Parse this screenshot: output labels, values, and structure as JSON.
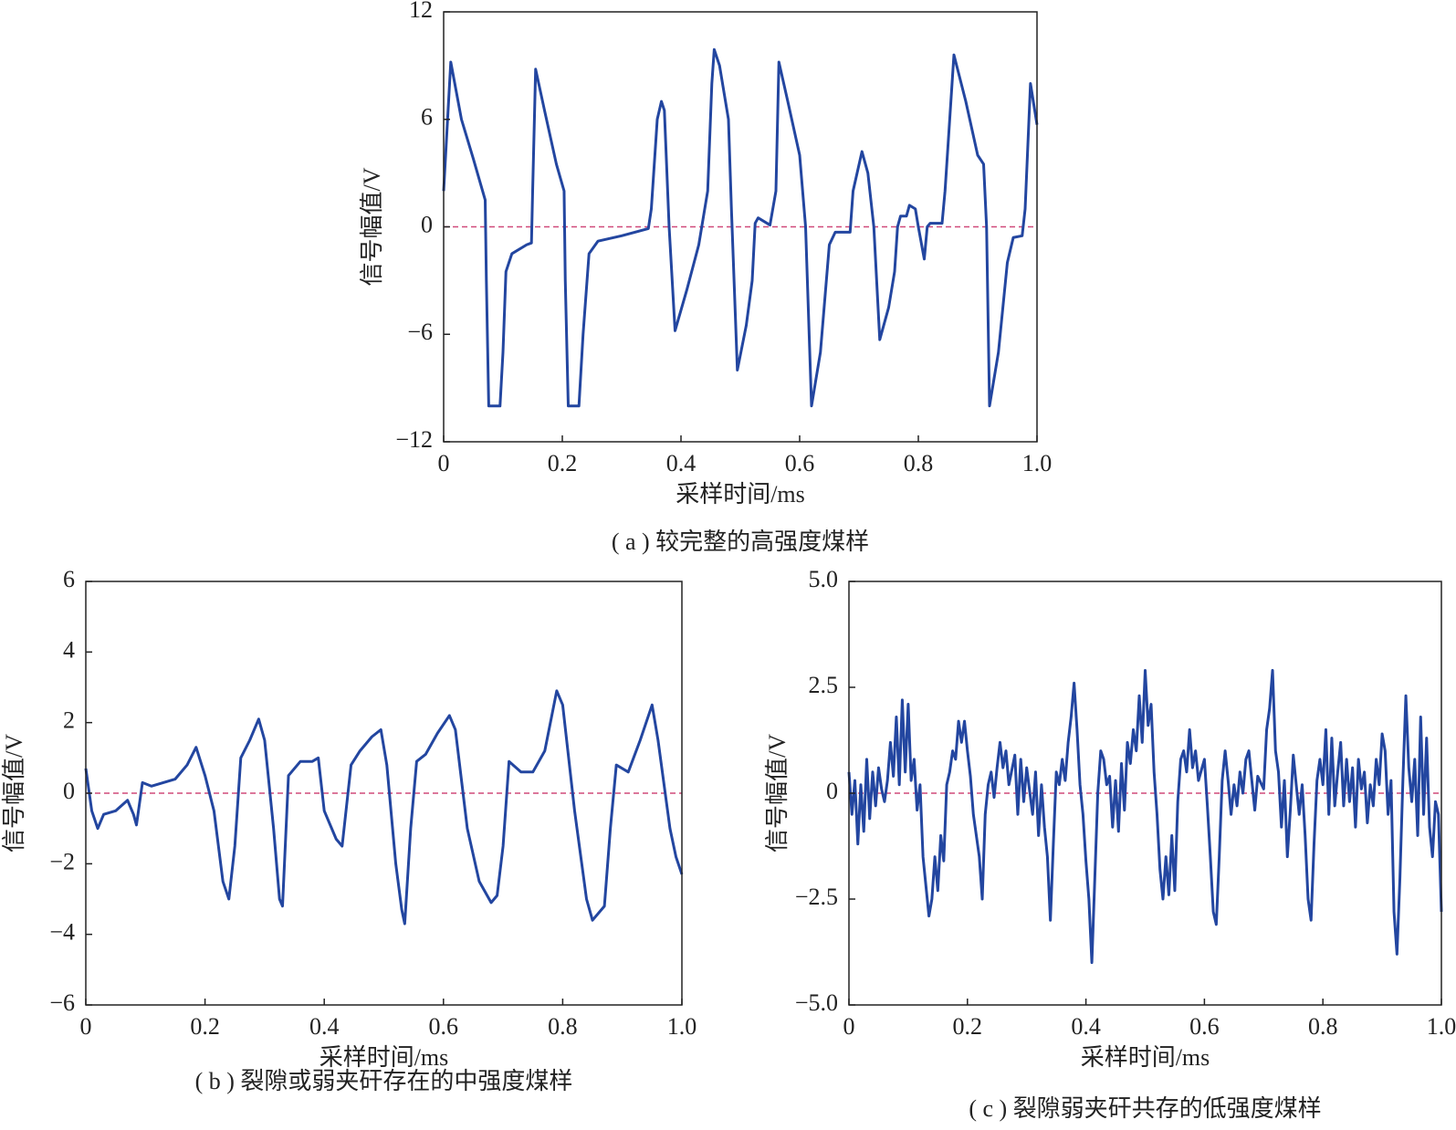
{
  "chart_data": [
    {
      "type": "line",
      "caption": "( a ) 较完整的高强度煤样",
      "xlabel": "采样时间/ms",
      "ylabel": "信号幅值/V",
      "x": [
        0,
        0.012,
        0.03,
        0.05,
        0.07,
        0.072,
        0.076,
        0.095,
        0.1,
        0.105,
        0.115,
        0.14,
        0.148,
        0.15,
        0.155,
        0.17,
        0.19,
        0.203,
        0.205,
        0.21,
        0.228,
        0.235,
        0.245,
        0.26,
        0.3,
        0.345,
        0.35,
        0.36,
        0.367,
        0.372,
        0.38,
        0.39,
        0.41,
        0.43,
        0.445,
        0.452,
        0.456,
        0.465,
        0.48,
        0.485,
        0.495,
        0.51,
        0.52,
        0.525,
        0.53,
        0.55,
        0.56,
        0.565,
        0.58,
        0.6,
        0.61,
        0.62,
        0.635,
        0.65,
        0.66,
        0.685,
        0.69,
        0.705,
        0.715,
        0.725,
        0.735,
        0.75,
        0.76,
        0.765,
        0.77,
        0.78,
        0.785,
        0.795,
        0.8,
        0.81,
        0.815,
        0.82,
        0.84,
        0.845,
        0.86,
        0.88,
        0.9,
        0.91,
        0.915,
        0.92,
        0.935,
        0.95,
        0.96,
        0.975,
        0.98,
        0.989,
        1
      ],
      "values": [
        2,
        9.2,
        6,
        3.8,
        1.5,
        -3,
        -10,
        -10,
        -7,
        -2.5,
        -1.5,
        -1.0,
        -0.9,
        2,
        8.8,
        6.5,
        3.5,
        2,
        -3,
        -10,
        -10,
        -6,
        -1.5,
        -0.8,
        -0.5,
        -0.1,
        1,
        6,
        7,
        6.5,
        0,
        -5.8,
        -3.5,
        -1,
        2,
        8,
        9.9,
        9,
        6,
        1,
        -8,
        -5.5,
        -3,
        0.2,
        0.5,
        0.1,
        2,
        9.2,
        7,
        4,
        0,
        -10,
        -7,
        -1,
        -0.3,
        -0.3,
        2,
        4.2,
        3,
        0,
        -6.3,
        -4.5,
        -2.5,
        0,
        0.6,
        0.6,
        1.2,
        1,
        0,
        -1.8,
        0,
        0.2,
        0.2,
        2,
        9.6,
        7,
        4.0,
        3.5,
        0,
        -10,
        -7,
        -2,
        -0.6,
        -0.5,
        1,
        8,
        5.7
      ],
      "color": "#2346a0",
      "xlim": [
        0,
        1
      ],
      "xticks": [
        0,
        0.2,
        0.4,
        0.6,
        0.8,
        {
          "value": 1,
          "label": "1.0"
        }
      ],
      "ylim": [
        -12,
        12
      ],
      "yticks": [
        {
          "value": -12,
          "label": "−12"
        },
        {
          "value": -6,
          "label": "−6"
        },
        0,
        6,
        12
      ],
      "reference_line": {
        "y": 0,
        "color": "#d04a7a",
        "style": "dashed"
      }
    },
    {
      "type": "line",
      "caption": "( b ) 裂隙或弱夹矸存在的中强度煤样",
      "xlabel": "采样时间/ms",
      "ylabel": "信号幅值/V",
      "x": [
        0,
        0.01,
        0.02,
        0.03,
        0.05,
        0.07,
        0.08,
        0.085,
        0.095,
        0.11,
        0.13,
        0.15,
        0.17,
        0.185,
        0.2,
        0.215,
        0.23,
        0.24,
        0.25,
        0.26,
        0.275,
        0.29,
        0.3,
        0.315,
        0.325,
        0.33,
        0.34,
        0.36,
        0.38,
        0.39,
        0.4,
        0.42,
        0.43,
        0.445,
        0.46,
        0.48,
        0.495,
        0.505,
        0.52,
        0.53,
        0.535,
        0.545,
        0.555,
        0.57,
        0.59,
        0.61,
        0.62,
        0.64,
        0.66,
        0.68,
        0.69,
        0.7,
        0.71,
        0.73,
        0.75,
        0.77,
        0.79,
        0.8,
        0.82,
        0.84,
        0.85,
        0.87,
        0.88,
        0.89,
        0.91,
        0.93,
        0.95,
        0.96,
        0.98,
        0.99,
        1
      ],
      "values": [
        0.7,
        -0.5,
        -1,
        -0.6,
        -0.5,
        -0.2,
        -0.6,
        -0.9,
        0.3,
        0.2,
        0.3,
        0.4,
        0.8,
        1.3,
        0.5,
        -0.5,
        -2.5,
        -3,
        -1.5,
        1,
        1.5,
        2.1,
        1.5,
        -1,
        -3,
        -3.2,
        0.5,
        0.9,
        0.9,
        1,
        -0.5,
        -1.3,
        -1.5,
        0.8,
        1.2,
        1.6,
        1.8,
        0.8,
        -2,
        -3.3,
        -3.7,
        -1,
        0.9,
        1.1,
        1.7,
        2.2,
        1.8,
        -1,
        -2.5,
        -3.1,
        -2.9,
        -1.5,
        0.9,
        0.6,
        0.6,
        1.2,
        2.9,
        2.5,
        -0.5,
        -3,
        -3.6,
        -3.2,
        -1,
        0.8,
        0.6,
        1.5,
        2.5,
        1.5,
        -1,
        -1.8,
        -2.3
      ],
      "color": "#2346a0",
      "xlim": [
        0,
        1
      ],
      "xticks": [
        0,
        0.2,
        0.4,
        0.6,
        0.8,
        {
          "value": 1,
          "label": "1.0"
        }
      ],
      "ylim": [
        -6,
        6
      ],
      "yticks": [
        {
          "value": -6,
          "label": "−6"
        },
        {
          "value": -4,
          "label": "−4"
        },
        {
          "value": -2,
          "label": "−2"
        },
        0,
        2,
        4,
        6
      ],
      "reference_line": {
        "y": 0,
        "color": "#d04a7a",
        "style": "dashed"
      }
    },
    {
      "type": "line",
      "caption": "( c ) 裂隙弱夹矸共存的低强度煤样",
      "xlabel": "采样时间/ms",
      "ylabel": "信号幅值/V",
      "x": [
        0,
        0.005,
        0.01,
        0.015,
        0.02,
        0.025,
        0.03,
        0.035,
        0.04,
        0.045,
        0.05,
        0.055,
        0.06,
        0.065,
        0.07,
        0.075,
        0.08,
        0.085,
        0.09,
        0.095,
        0.1,
        0.105,
        0.11,
        0.115,
        0.12,
        0.125,
        0.13,
        0.135,
        0.14,
        0.145,
        0.15,
        0.155,
        0.16,
        0.165,
        0.17,
        0.175,
        0.18,
        0.185,
        0.19,
        0.195,
        0.2,
        0.205,
        0.21,
        0.22,
        0.225,
        0.23,
        0.235,
        0.24,
        0.245,
        0.25,
        0.255,
        0.26,
        0.265,
        0.27,
        0.28,
        0.285,
        0.29,
        0.295,
        0.3,
        0.31,
        0.315,
        0.32,
        0.325,
        0.33,
        0.335,
        0.34,
        0.345,
        0.35,
        0.355,
        0.36,
        0.365,
        0.37,
        0.375,
        0.38,
        0.385,
        0.39,
        0.395,
        0.4,
        0.405,
        0.41,
        0.415,
        0.42,
        0.425,
        0.43,
        0.435,
        0.44,
        0.445,
        0.45,
        0.455,
        0.46,
        0.465,
        0.47,
        0.475,
        0.48,
        0.485,
        0.49,
        0.495,
        0.5,
        0.505,
        0.51,
        0.515,
        0.52,
        0.525,
        0.53,
        0.535,
        0.54,
        0.545,
        0.55,
        0.555,
        0.56,
        0.565,
        0.57,
        0.575,
        0.58,
        0.585,
        0.59,
        0.6,
        0.605,
        0.61,
        0.615,
        0.62,
        0.625,
        0.63,
        0.635,
        0.64,
        0.645,
        0.65,
        0.655,
        0.66,
        0.665,
        0.67,
        0.675,
        0.68,
        0.685,
        0.69,
        0.7,
        0.705,
        0.71,
        0.715,
        0.72,
        0.725,
        0.73,
        0.735,
        0.74,
        0.745,
        0.75,
        0.755,
        0.76,
        0.765,
        0.77,
        0.775,
        0.78,
        0.785,
        0.79,
        0.795,
        0.8,
        0.805,
        0.81,
        0.815,
        0.82,
        0.825,
        0.83,
        0.835,
        0.84,
        0.845,
        0.85,
        0.855,
        0.86,
        0.865,
        0.87,
        0.875,
        0.88,
        0.885,
        0.89,
        0.895,
        0.9,
        0.905,
        0.91,
        0.915,
        0.92,
        0.925,
        0.93,
        0.935,
        0.94,
        0.945,
        0.95,
        0.955,
        0.96,
        0.965,
        0.97,
        0.975,
        0.98,
        0.985,
        0.99,
        0.995,
        1
      ],
      "values": [
        0.5,
        -0.5,
        0.3,
        -1.2,
        0.2,
        -0.9,
        0.8,
        -0.6,
        0.5,
        -0.3,
        0.6,
        0.1,
        -0.2,
        0.3,
        1.2,
        0.4,
        1.8,
        0.2,
        2.2,
        0.5,
        2.1,
        0.3,
        0.8,
        -0.4,
        0.2,
        -1.5,
        -2.2,
        -2.9,
        -2.5,
        -1.5,
        -2.3,
        -1,
        -1.6,
        0.2,
        0.5,
        1.0,
        0.8,
        1.7,
        1.2,
        1.7,
        1.0,
        0.4,
        -0.5,
        -1.5,
        -2.5,
        -0.5,
        0.2,
        0.5,
        -0.1,
        0.6,
        1.2,
        0.6,
        1.0,
        0.2,
        0.9,
        -0.5,
        0.8,
        -0.2,
        0.6,
        -0.5,
        0.5,
        -1,
        0.2,
        -0.8,
        -1.5,
        -3.0,
        -1.2,
        0.5,
        0.2,
        0.8,
        0.3,
        1.2,
        1.8,
        2.6,
        1.5,
        0.2,
        -0.5,
        -1.6,
        -2.5,
        -4.0,
        -2,
        0,
        1,
        0.8,
        0.2,
        0.4,
        -0.8,
        0.3,
        -0.9,
        0.7,
        -0.4,
        1.2,
        0.7,
        1.5,
        1.0,
        2.3,
        1.2,
        2.9,
        1.6,
        2.1,
        0.5,
        -0.5,
        -1.8,
        -2.5,
        -1.5,
        -2.4,
        -1.0,
        -2.3,
        -0.2,
        0.8,
        1.0,
        0.5,
        1.5,
        0.6,
        1.0,
        0.3,
        0.8,
        -0.3,
        -1.5,
        -2.8,
        -3.1,
        -1.5,
        0.3,
        1.0,
        0.3,
        -0.5,
        0.2,
        -0.3,
        0.5,
        0.0,
        0.8,
        1.0,
        0.3,
        -0.4,
        0.4,
        0.1,
        1.5,
        2.0,
        2.9,
        1.0,
        0.5,
        -0.8,
        0.3,
        -1.5,
        -0.4,
        0.9,
        0.2,
        -0.5,
        0.2,
        -1.0,
        -2.5,
        -3.0,
        -1.2,
        0.3,
        0.8,
        0.2,
        1.5,
        -0.5,
        1.3,
        -0.3,
        0.5,
        1.2,
        -0.3,
        0.8,
        -0.2,
        0.6,
        -0.8,
        0.8,
        0.1,
        0.5,
        -0.7,
        0.2,
        -0.3,
        0.8,
        0.2,
        1.4,
        1.0,
        -0.5,
        0.3,
        -2.8,
        -3.8,
        -2.0,
        0.3,
        2.3,
        0.6,
        -0.2,
        0.8,
        -1.0,
        1.8,
        -0.5,
        1.3,
        -0.8,
        -1.5,
        -0.2,
        -0.5,
        -2.8
      ],
      "color": "#2346a0",
      "xlim": [
        0,
        1
      ],
      "xticks": [
        0,
        0.2,
        0.4,
        0.6,
        0.8,
        {
          "value": 1,
          "label": "1.0"
        }
      ],
      "ylim": [
        -5,
        5
      ],
      "yticks": [
        {
          "value": -5,
          "label": "−5.0"
        },
        {
          "value": -2.5,
          "label": "−2.5"
        },
        0,
        2.5,
        {
          "value": 5,
          "label": "5.0"
        }
      ],
      "reference_line": {
        "y": 0,
        "color": "#d04a7a",
        "style": "dashed"
      }
    }
  ]
}
